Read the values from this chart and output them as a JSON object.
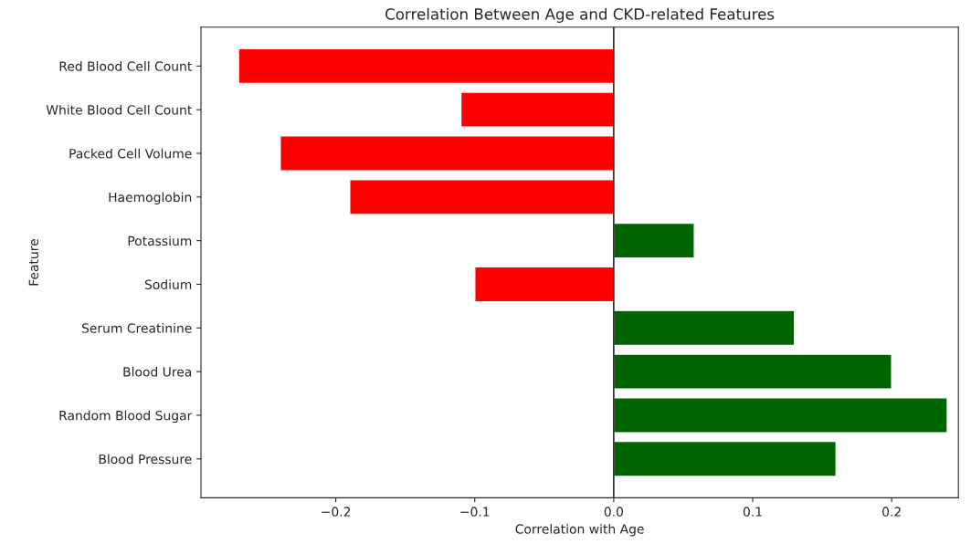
{
  "chart_data": {
    "type": "bar",
    "orientation": "horizontal",
    "title": "Correlation Between Age and CKD-related Features",
    "xlabel": "Correlation with Age",
    "ylabel": "Feature",
    "categories": [
      "Red Blood Cell Count",
      "White Blood Cell Count",
      "Packed Cell Volume",
      "Haemoglobin",
      "Potassium",
      "Sodium",
      "Serum Creatinine",
      "Blood Urea",
      "Random Blood Sugar",
      "Blood Pressure"
    ],
    "values": [
      -0.27,
      -0.11,
      -0.24,
      -0.19,
      0.058,
      -0.1,
      0.13,
      0.2,
      0.24,
      0.16
    ],
    "colors": [
      "#ff0000",
      "#ff0000",
      "#ff0000",
      "#ff0000",
      "#006400",
      "#ff0000",
      "#006400",
      "#006400",
      "#006400",
      "#006400"
    ],
    "xlim": [
      -0.297,
      0.248
    ],
    "xticks": [
      {
        "value": -0.2,
        "label": "−0.2"
      },
      {
        "value": -0.1,
        "label": "−0.1"
      },
      {
        "value": 0,
        "label": "0.0"
      },
      {
        "value": 0.1,
        "label": "0.1"
      },
      {
        "value": 0.2,
        "label": "0.2"
      }
    ],
    "ref_lines": [
      {
        "axis": "x",
        "value": 0,
        "color": "#000000"
      }
    ],
    "grid": false
  }
}
